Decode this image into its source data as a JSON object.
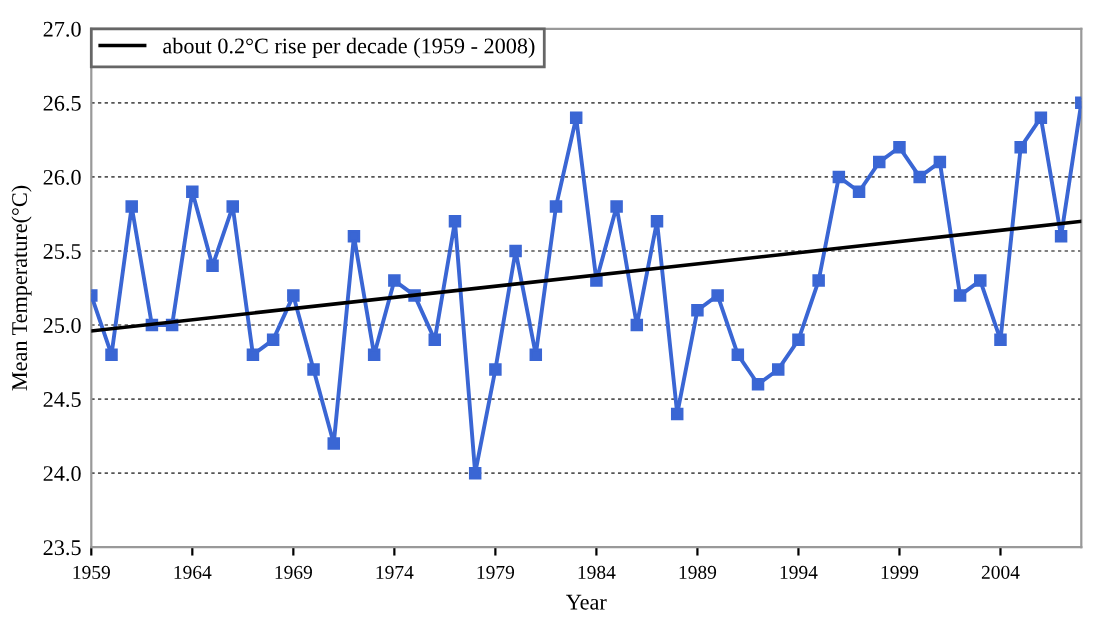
{
  "chart_data": {
    "type": "line",
    "xlabel": "Year",
    "ylabel": "Mean Temperature(°C)",
    "x": [
      1959,
      1960,
      1961,
      1962,
      1963,
      1964,
      1965,
      1966,
      1967,
      1968,
      1969,
      1970,
      1971,
      1972,
      1973,
      1974,
      1975,
      1976,
      1977,
      1978,
      1979,
      1980,
      1981,
      1982,
      1983,
      1984,
      1985,
      1986,
      1987,
      1988,
      1989,
      1990,
      1991,
      1992,
      1993,
      1994,
      1995,
      1996,
      1997,
      1998,
      1999,
      2000,
      2001,
      2002,
      2003,
      2004,
      2005,
      2006,
      2007,
      2008
    ],
    "series": [
      {
        "color": "#3a66d4",
        "marker": "square",
        "values": [
          25.2,
          24.8,
          25.8,
          25.0,
          25.0,
          25.9,
          25.4,
          25.8,
          24.8,
          24.9,
          25.2,
          24.7,
          24.2,
          25.6,
          24.8,
          25.3,
          25.2,
          24.9,
          25.7,
          24.0,
          24.7,
          25.5,
          24.8,
          25.8,
          26.4,
          25.3,
          25.8,
          25.0,
          25.7,
          24.4,
          25.1,
          25.2,
          24.8,
          24.6,
          24.7,
          24.9,
          25.3,
          26.0,
          25.9,
          26.1,
          26.2,
          26.0,
          26.1,
          25.2,
          25.3,
          24.9,
          26.2,
          26.4,
          25.6,
          26.5
        ]
      },
      {
        "type": "line",
        "name": "about 0.2°C rise per decade (1959 - 2008)",
        "color": "#000000",
        "marker": "none",
        "x": [
          1959,
          2008
        ],
        "values": [
          24.96,
          25.7
        ]
      }
    ],
    "xlim": [
      1959,
      2008
    ],
    "xticks": [
      1959,
      1964,
      1969,
      1974,
      1979,
      1984,
      1989,
      1994,
      1999,
      2004
    ],
    "ylim": [
      23.5,
      27.0
    ],
    "yticks": [
      {
        "value": 23.5,
        "label": "23.5"
      },
      {
        "value": 24.0,
        "label": "24.0"
      },
      {
        "value": 24.5,
        "label": "24.5"
      },
      {
        "value": 25.0,
        "label": "25.0"
      },
      {
        "value": 25.5,
        "label": "25.5"
      },
      {
        "value": 26.0,
        "label": "26.0"
      },
      {
        "value": 26.5,
        "label": "26.5"
      },
      {
        "value": 27.0,
        "label": "27.0"
      }
    ],
    "grid": "y",
    "legend": "top left"
  }
}
